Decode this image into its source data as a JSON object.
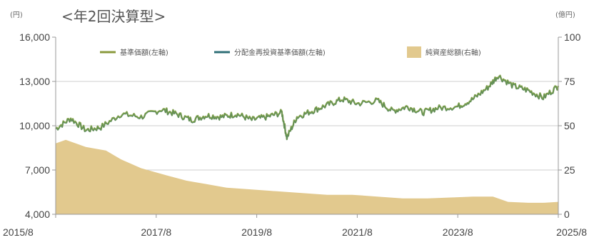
{
  "chart_data": {
    "type": "line",
    "title": "<年2回決算型>",
    "left_unit": "(円)",
    "right_unit": "(億円)",
    "x_labels": [
      "2015/8",
      "2017/8",
      "2019/8",
      "2021/8",
      "2023/8",
      "2025/8"
    ],
    "y_left": {
      "ticks": [
        "16,000",
        "13,000",
        "10,000",
        "7,000",
        "4,000"
      ],
      "min": 4000,
      "max": 16000
    },
    "y_right": {
      "ticks": [
        "100",
        "75",
        "50",
        "25",
        "0"
      ],
      "min": 0,
      "max": 100
    },
    "legend": [
      {
        "label": "基準価額(左軸)",
        "color": "#8a9a3c"
      },
      {
        "label": "分配金再投資基準価額(左軸)",
        "color": "#2f6f77"
      },
      {
        "label": "純資産総額(右軸)",
        "color": "#e2c98e"
      }
    ],
    "series": [
      {
        "name": "基準価額(左軸)",
        "axis": "left",
        "x": [
          2015.6,
          2015.9,
          2016.2,
          2016.5,
          2016.9,
          2017.3,
          2017.7,
          2018.0,
          2018.3,
          2018.6,
          2018.9,
          2019.2,
          2019.5,
          2019.8,
          2020.1,
          2020.2,
          2020.4,
          2020.7,
          2021.0,
          2021.3,
          2021.6,
          2022.0,
          2022.3,
          2022.6,
          2022.9,
          2023.2,
          2023.6,
          2023.9,
          2024.2,
          2024.4,
          2024.7,
          2025.0,
          2025.3,
          2025.6
        ],
        "values": [
          9800,
          10500,
          9700,
          9900,
          10800,
          10600,
          11100,
          10800,
          10400,
          10700,
          10600,
          10800,
          10400,
          10600,
          10900,
          9200,
          10600,
          11000,
          11400,
          11800,
          11500,
          11700,
          11000,
          11300,
          10900,
          11200,
          11300,
          11800,
          12600,
          13400,
          12700,
          12400,
          11900,
          12700
        ]
      },
      {
        "name": "純資産総額(右軸)",
        "axis": "right",
        "x": [
          2015.6,
          2015.8,
          2016.2,
          2016.6,
          2016.9,
          2017.3,
          2017.8,
          2018.2,
          2018.6,
          2019.0,
          2019.5,
          2020.0,
          2020.5,
          2021.0,
          2021.5,
          2022.0,
          2022.5,
          2023.0,
          2023.5,
          2023.9,
          2024.3,
          2024.6,
          2025.0,
          2025.3,
          2025.6
        ],
        "values": [
          40,
          42,
          38,
          36,
          31,
          26,
          22,
          19,
          17,
          15,
          14,
          13,
          12,
          11,
          11,
          10,
          9,
          9,
          9.5,
          10,
          10,
          7,
          6.5,
          6.5,
          7
        ]
      }
    ]
  }
}
